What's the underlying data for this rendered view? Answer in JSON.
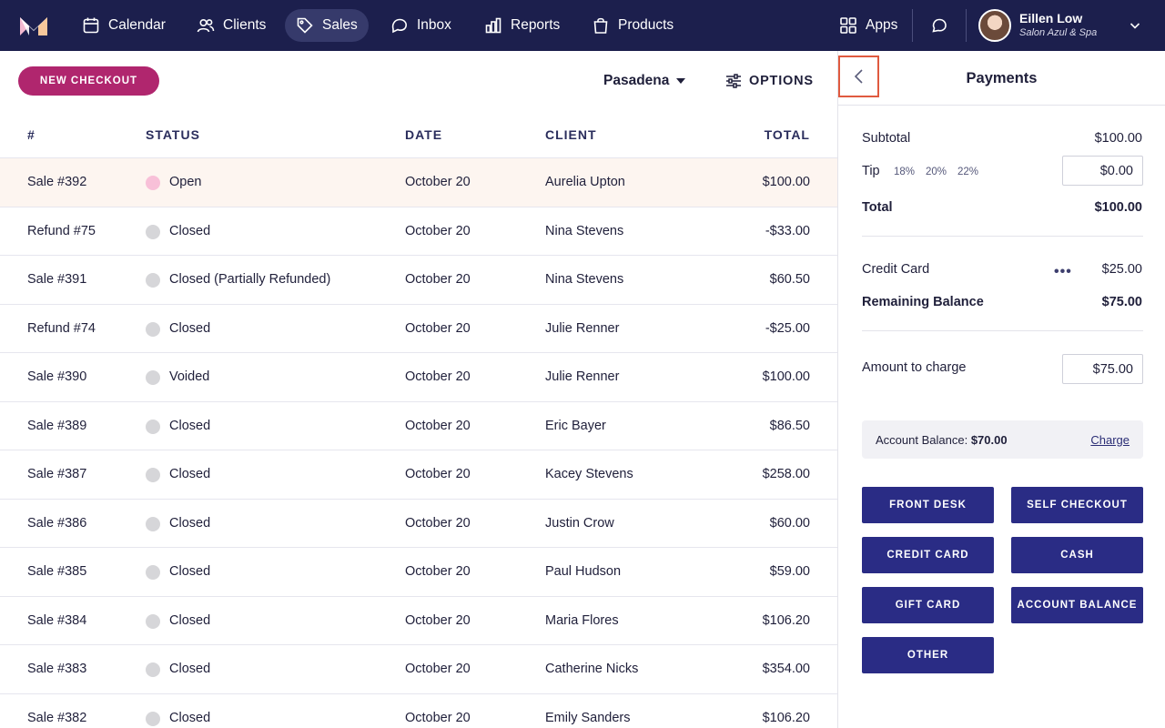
{
  "nav": {
    "items": [
      {
        "label": "Calendar",
        "icon": "calendar-icon"
      },
      {
        "label": "Clients",
        "icon": "users-icon"
      },
      {
        "label": "Sales",
        "icon": "tag-icon",
        "active": true
      },
      {
        "label": "Inbox",
        "icon": "chat-bubbles-icon"
      },
      {
        "label": "Reports",
        "icon": "bar-chart-icon"
      },
      {
        "label": "Products",
        "icon": "shopping-bag-icon"
      }
    ],
    "apps_label": "Apps",
    "user": {
      "name": "Eillen Low",
      "business": "Salon Azul & Spa"
    }
  },
  "toolbar": {
    "new_checkout_label": "NEW CHECKOUT",
    "location": "Pasadena",
    "options_label": "OPTIONS"
  },
  "table": {
    "headers": {
      "num": "#",
      "status": "STATUS",
      "date": "DATE",
      "client": "CLIENT",
      "total": "TOTAL"
    },
    "rows": [
      {
        "num": "Sale #392",
        "status": "Open",
        "date": "October 20",
        "client": "Aurelia Upton",
        "total": "$100.00"
      },
      {
        "num": "Refund #75",
        "status": "Closed",
        "date": "October 20",
        "client": "Nina Stevens",
        "total": "-$33.00"
      },
      {
        "num": "Sale #391",
        "status": "Closed (Partially Refunded)",
        "date": "October 20",
        "client": "Nina Stevens",
        "total": "$60.50"
      },
      {
        "num": "Refund #74",
        "status": "Closed",
        "date": "October 20",
        "client": "Julie Renner",
        "total": "-$25.00"
      },
      {
        "num": "Sale #390",
        "status": "Voided",
        "date": "October 20",
        "client": "Julie Renner",
        "total": "$100.00"
      },
      {
        "num": "Sale #389",
        "status": "Closed",
        "date": "October 20",
        "client": "Eric Bayer",
        "total": "$86.50"
      },
      {
        "num": "Sale #387",
        "status": "Closed",
        "date": "October 20",
        "client": "Kacey Stevens",
        "total": "$258.00"
      },
      {
        "num": "Sale #386",
        "status": "Closed",
        "date": "October 20",
        "client": "Justin Crow",
        "total": "$60.00"
      },
      {
        "num": "Sale #385",
        "status": "Closed",
        "date": "October 20",
        "client": "Paul Hudson",
        "total": "$59.00"
      },
      {
        "num": "Sale #384",
        "status": "Closed",
        "date": "October 20",
        "client": "Maria Flores",
        "total": "$106.20"
      },
      {
        "num": "Sale #383",
        "status": "Closed",
        "date": "October 20",
        "client": "Catherine Nicks",
        "total": "$354.00"
      },
      {
        "num": "Sale #382",
        "status": "Closed",
        "date": "October 20",
        "client": "Emily Sanders",
        "total": "$106.20"
      }
    ]
  },
  "payments": {
    "title": "Payments",
    "subtotal_label": "Subtotal",
    "subtotal": "$100.00",
    "tip_label": "Tip",
    "tip_options": [
      "18%",
      "20%",
      "22%"
    ],
    "tip_value": "$0.00",
    "total_label": "Total",
    "total": "$100.00",
    "credit_card_label": "Credit Card",
    "credit_card_amount": "$25.00",
    "remaining_label": "Remaining Balance",
    "remaining": "$75.00",
    "amount_to_charge_label": "Amount to charge",
    "amount_to_charge": "$75.00",
    "account_balance_label": "Account Balance:",
    "account_balance": "$70.00",
    "charge_link": "Charge",
    "methods": [
      "FRONT DESK",
      "SELF CHECKOUT",
      "CREDIT CARD",
      "CASH",
      "GIFT CARD",
      "ACCOUNT BALANCE",
      "OTHER"
    ]
  },
  "colors": {
    "nav_bg": "#1c1f4d",
    "accent": "#b0266e",
    "button_primary": "#2a2c85",
    "highlight_row": "#fdf5f0",
    "open_status": "#f8c0d8",
    "closed_status": "#d6d6d9",
    "focus_outline": "#e05a3f"
  }
}
